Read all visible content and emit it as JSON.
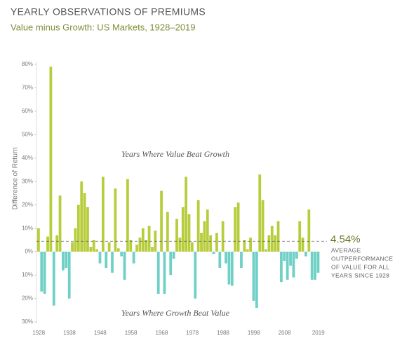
{
  "chart_data": {
    "type": "bar",
    "title": "YEARLY OBSERVATIONS OF PREMIUMS",
    "subtitle": "Value minus Growth: US Markets, 1928–2019",
    "y_label": "Difference of Return",
    "annotations": [
      "Years Where Value Beat Growth",
      "Years Where Growth Beat Value"
    ],
    "reference": {
      "value": 4.54,
      "label": "4.54%",
      "note": [
        "AVERAGE",
        "OUTPERFORMANCE",
        "OF VALUE FOR ALL",
        "YEARS SINCE 1928"
      ]
    },
    "categories": [
      "1928",
      null,
      null,
      null,
      null,
      null,
      null,
      null,
      null,
      null,
      "1938",
      null,
      null,
      null,
      null,
      null,
      null,
      null,
      null,
      null,
      "1948",
      null,
      null,
      null,
      null,
      null,
      null,
      null,
      null,
      null,
      "1958",
      null,
      null,
      null,
      null,
      null,
      null,
      null,
      null,
      null,
      "1968",
      null,
      null,
      null,
      null,
      null,
      null,
      null,
      null,
      null,
      "1978",
      null,
      null,
      null,
      null,
      null,
      null,
      null,
      null,
      null,
      "1988",
      null,
      null,
      null,
      null,
      null,
      null,
      null,
      null,
      null,
      "1998",
      null,
      null,
      null,
      null,
      null,
      null,
      null,
      null,
      null,
      "2008",
      null,
      null,
      null,
      null,
      null,
      null,
      null,
      null,
      null,
      null,
      "2019"
    ],
    "values": [
      10,
      -17,
      -18,
      6.5,
      79,
      -23,
      7,
      24,
      -8,
      -7,
      -20,
      4,
      10,
      20,
      30,
      25,
      19,
      2,
      5,
      1,
      -5,
      32,
      -7,
      4,
      -9,
      27,
      1.5,
      -2,
      -12,
      31,
      5,
      -5,
      3,
      6,
      10,
      5,
      11,
      2,
      9,
      -18,
      26,
      -18,
      17,
      -10,
      -3,
      14,
      6,
      19,
      32,
      16,
      4,
      -20,
      22,
      8,
      13,
      18,
      7,
      -1,
      8,
      -7,
      13,
      -5,
      -14,
      -14.5,
      19,
      21,
      -7,
      5,
      1,
      6,
      -21,
      -24,
      33,
      22,
      1,
      7,
      11,
      7,
      13,
      -13,
      -4,
      -12,
      -6,
      -11,
      -3,
      13,
      6,
      -2,
      18,
      -12,
      -12,
      -9
    ],
    "color_positive": "#b7cd3c",
    "color_negative": "#6fd0c6",
    "ylim": [
      -30,
      80
    ],
    "yticks": [
      {
        "value": 80,
        "label": "80%"
      },
      {
        "value": 70,
        "label": "70%"
      },
      {
        "value": 60,
        "label": "60%"
      },
      {
        "value": 50,
        "label": "50%"
      },
      {
        "value": 40,
        "label": "40%"
      },
      {
        "value": 30,
        "label": "30%"
      },
      {
        "value": 20,
        "label": "20%"
      },
      {
        "value": 10,
        "label": "10%"
      },
      {
        "value": 0,
        "label": "0%"
      },
      {
        "value": -10,
        "label": "10%"
      },
      {
        "value": -20,
        "label": "20%"
      },
      {
        "value": -30,
        "label": "30%"
      }
    ]
  }
}
